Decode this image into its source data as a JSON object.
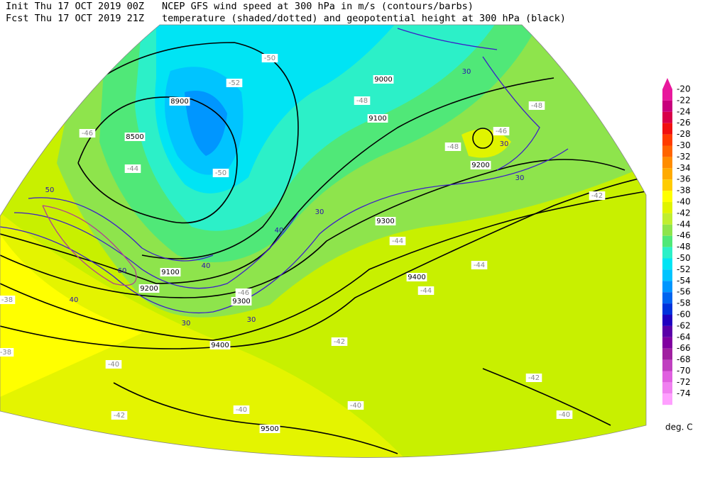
{
  "header": {
    "init": "Init  Thu 17 OCT 2019 00Z",
    "fcst": "Fcst Thu 17 OCT 2019 21Z",
    "title1": "NCEP GFS wind speed at 300 hPa in m/s (contours/barbs)",
    "title2": "temperature (shaded/dotted) and geopotential height at 300 hPa (black)"
  },
  "legend": {
    "unit": "deg. C",
    "items": [
      {
        "label": "-20",
        "color": "#e8189c"
      },
      {
        "label": "-22",
        "color": "#c8007c"
      },
      {
        "label": "-24",
        "color": "#d80048"
      },
      {
        "label": "-26",
        "color": "#f01010"
      },
      {
        "label": "-28",
        "color": "#ff3c00"
      },
      {
        "label": "-30",
        "color": "#ff6400"
      },
      {
        "label": "-32",
        "color": "#ff8c00"
      },
      {
        "label": "-34",
        "color": "#ffaa00"
      },
      {
        "label": "-36",
        "color": "#ffcc00"
      },
      {
        "label": "-38",
        "color": "#ffff00"
      },
      {
        "label": "-40",
        "color": "#e0f400"
      },
      {
        "label": "-42",
        "color": "#c0ee30"
      },
      {
        "label": "-44",
        "color": "#8ee44c"
      },
      {
        "label": "-46",
        "color": "#50e878"
      },
      {
        "label": "-48",
        "color": "#2cf0c8"
      },
      {
        "label": "-50",
        "color": "#00e4f4"
      },
      {
        "label": "-52",
        "color": "#00c4ff"
      },
      {
        "label": "-54",
        "color": "#0096ff"
      },
      {
        "label": "-56",
        "color": "#0064f0"
      },
      {
        "label": "-58",
        "color": "#0032dc"
      },
      {
        "label": "-60",
        "color": "#2000c0"
      },
      {
        "label": "-62",
        "color": "#5a00a8"
      },
      {
        "label": "-64",
        "color": "#8000a0"
      },
      {
        "label": "-66",
        "color": "#a020a0"
      },
      {
        "label": "-68",
        "color": "#c040c0"
      },
      {
        "label": "-70",
        "color": "#e060e0"
      },
      {
        "label": "-72",
        "color": "#f080f0"
      },
      {
        "label": "-74",
        "color": "#ffa0ff"
      }
    ]
  },
  "map": {
    "height_labels": [
      "8900",
      "8500",
      "9000",
      "9100",
      "9200",
      "9300",
      "9400",
      "9500",
      "9400",
      "9300",
      "9200",
      "9100"
    ],
    "wind_labels": [
      "30",
      "30",
      "30",
      "30",
      "30",
      "30",
      "40",
      "40",
      "40",
      "50",
      "60"
    ],
    "temp_labels": [
      "-46",
      "-44",
      "-50",
      "-52",
      "-48",
      "-48",
      "-46",
      "-48",
      "-50",
      "-42",
      "-44",
      "-44",
      "-46",
      "-42",
      "-42",
      "-40",
      "-40",
      "-40",
      "-42",
      "-38",
      "-38",
      "-40",
      "-44"
    ]
  }
}
